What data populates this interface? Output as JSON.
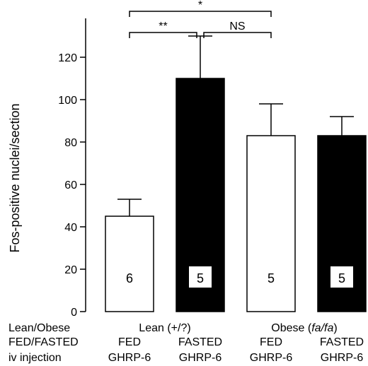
{
  "chart_data": {
    "type": "bar",
    "ylabel": "Fos-positive nuclei/section",
    "ylim": [
      0,
      140
    ],
    "yticks": [
      0,
      20,
      40,
      60,
      80,
      100,
      120
    ],
    "grid": false,
    "categories": [
      "Lean FED GHRP-6",
      "Lean FASTED GHRP-6",
      "Obese FED GHRP-6",
      "Obese FASTED GHRP-6"
    ],
    "bars": [
      {
        "value": 45,
        "error": 8,
        "n": "6",
        "fill": "#ffffff",
        "n_style": "plain"
      },
      {
        "value": 110,
        "error": 20,
        "n": "5",
        "fill": "#000000",
        "n_style": "boxed"
      },
      {
        "value": 83,
        "error": 15,
        "n": "5",
        "fill": "#ffffff",
        "n_style": "plain"
      },
      {
        "value": 83,
        "error": 9,
        "n": "5",
        "fill": "#000000",
        "n_style": "boxed"
      }
    ],
    "row_labels": [
      "Lean/Obese",
      "FED/FASTED",
      "iv injection"
    ],
    "group_labels": [
      {
        "prefix": "Lean (+/?)",
        "italic": "",
        "suffix": ""
      },
      {
        "prefix": "Obese (",
        "italic": "fa/fa",
        "suffix": ")"
      }
    ],
    "condition_labels": [
      "FED",
      "FASTED",
      "FED",
      "FASTED"
    ],
    "injection_labels": [
      "GHRP-6",
      "GHRP-6",
      "GHRP-6",
      "GHRP-6"
    ],
    "comparisons": [
      {
        "from": 0,
        "to": 1,
        "label": "**"
      },
      {
        "from": 1,
        "to": 2,
        "label": "NS"
      },
      {
        "from": 0,
        "to": 2,
        "label": "*"
      }
    ]
  }
}
